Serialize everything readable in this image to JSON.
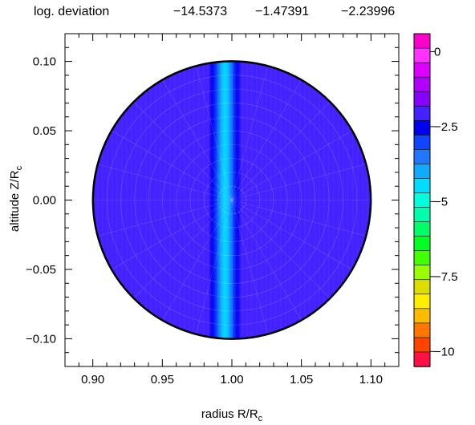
{
  "header": {
    "label": "log. deviation",
    "values": [
      "−14.5373",
      "−1.47391",
      "−2.23996"
    ]
  },
  "chart_data": {
    "type": "heatmap",
    "title": "",
    "xlabel": {
      "main": "radius R/R",
      "sub": "c"
    },
    "ylabel": {
      "main": "altitude Z/R",
      "sub": "c"
    },
    "xlim": [
      0.88,
      1.12
    ],
    "ylim": [
      -0.12,
      0.12
    ],
    "x_ticks": [
      0.9,
      0.95,
      1.0,
      1.05,
      1.1
    ],
    "x_tick_labels": [
      "0.90",
      "0.95",
      "1.00",
      "1.05",
      "1.10"
    ],
    "y_ticks": [
      -0.1,
      -0.05,
      0.0,
      0.05,
      0.1
    ],
    "y_tick_labels": [
      "−0.10",
      "−0.05",
      "0.00",
      "0.05",
      "0.10"
    ],
    "domain": {
      "shape": "circle",
      "center_x": 1.0,
      "center_y": 0.0,
      "radius": 0.1
    },
    "field": {
      "background_value": -2.0,
      "band_center_x": 0.995,
      "band_core_value": -4.3,
      "band_width": 0.006,
      "grid": "polar"
    },
    "colorbar": {
      "range": [
        -10.5,
        0.6
      ],
      "levels": [
        0.5,
        0.0,
        -0.5,
        -1.0,
        -1.5,
        -2.0,
        -2.5,
        -3.0,
        -3.5,
        -4.0,
        -4.5,
        -5.0,
        -5.5,
        -6.0,
        -6.5,
        -7.0,
        -7.5,
        -8.0,
        -8.5,
        -9.0,
        -9.5,
        -10.0,
        -10.5
      ],
      "colors": [
        "#ff00cc",
        "#ff33ff",
        "#dd00ff",
        "#b000ff",
        "#8800ff",
        "#4422ff",
        "#0000ee",
        "#1144ff",
        "#2277ff",
        "#11aaff",
        "#00ddff",
        "#00ffdd",
        "#00ffaa",
        "#00ff66",
        "#00ff22",
        "#44ff00",
        "#99ff00",
        "#dddd00",
        "#ffee00",
        "#ffbb00",
        "#ff7700",
        "#ff4400",
        "#ff1144"
      ],
      "ticks": [
        0,
        -2.5,
        -5,
        -7.5,
        -10
      ],
      "tick_labels": [
        "0",
        "−2.5",
        "−5",
        "−7.5",
        "−10"
      ]
    },
    "grid": false,
    "legend": "colorbar-right"
  }
}
